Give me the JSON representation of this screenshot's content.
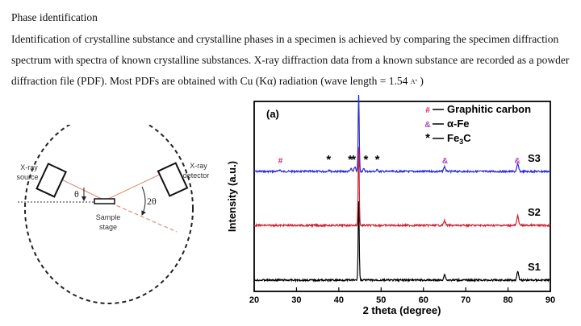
{
  "text": {
    "heading": "Phase identification",
    "paragraph_start": "Identification of crystalline substance and crystalline phases in a specimen is achieved by comparing the specimen diffraction spectrum with spectra of known crystalline substances. X-ray diffraction data from a known substance are recorded as a powder diffraction file (PDF). Most PDFs are obtained with Cu (Kα) radiation (wave length = 1.54 ",
    "unit": "Aº",
    "paragraph_end": " )"
  },
  "diagram": {
    "source_label_1": "X-ray",
    "source_label_2": "source",
    "detector_label_1": "X-ray",
    "detector_label_2": "detector",
    "theta_label": "θ",
    "two_theta_label": "2θ",
    "sample_label_1": "Sample",
    "sample_label_2": "stage"
  },
  "chart_data": {
    "type": "line",
    "panel_label": "(a)",
    "xlabel": "2 theta (degree)",
    "ylabel": "Intensity (a.u.)",
    "xlim": [
      20,
      90
    ],
    "xticks": [
      20,
      30,
      40,
      50,
      60,
      70,
      80,
      90
    ],
    "y_ticks_shown": false,
    "grid": false,
    "legend_position": "top-right",
    "legend": [
      {
        "marker": "#",
        "label": "Graphitic carbon",
        "color": "#e0206a"
      },
      {
        "marker": "&",
        "label": "α-Fe",
        "color": "#b040c0"
      },
      {
        "marker": "*",
        "label": "Fe3C",
        "color": "#000000"
      }
    ],
    "series": [
      {
        "name": "S3",
        "color": "#2a2ad8",
        "peaks": [
          {
            "x": 26.0,
            "y": 2
          },
          {
            "x": 37.7,
            "y": 2
          },
          {
            "x": 42.9,
            "y": 3
          },
          {
            "x": 43.8,
            "y": 5
          },
          {
            "x": 44.7,
            "y": 100
          },
          {
            "x": 45.9,
            "y": 3
          },
          {
            "x": 49.1,
            "y": 2
          },
          {
            "x": 65.0,
            "y": 6
          },
          {
            "x": 82.3,
            "y": 9
          }
        ],
        "annotations": [
          {
            "x": 26.2,
            "symbol": "#",
            "color": "#e0206a"
          },
          {
            "x": 37.6,
            "symbol": "*",
            "color": "#000000"
          },
          {
            "x": 42.7,
            "symbol": "*",
            "color": "#000000"
          },
          {
            "x": 43.5,
            "symbol": "*",
            "color": "#000000"
          },
          {
            "x": 44.7,
            "symbol": "&",
            "color": "#b040c0"
          },
          {
            "x": 46.4,
            "symbol": "*",
            "color": "#000000"
          },
          {
            "x": 49.1,
            "symbol": "*",
            "color": "#000000"
          },
          {
            "x": 65.1,
            "symbol": "&",
            "color": "#b040c0"
          },
          {
            "x": 82.2,
            "symbol": "&",
            "color": "#b040c0"
          }
        ]
      },
      {
        "name": "S2",
        "color": "#d02030",
        "peaks": [
          {
            "x": 44.7,
            "y": 100
          },
          {
            "x": 65.0,
            "y": 6
          },
          {
            "x": 82.3,
            "y": 12
          }
        ]
      },
      {
        "name": "S1",
        "color": "#000000",
        "peaks": [
          {
            "x": 44.7,
            "y": 100
          },
          {
            "x": 65.0,
            "y": 7
          },
          {
            "x": 82.3,
            "y": 11
          }
        ]
      }
    ]
  }
}
